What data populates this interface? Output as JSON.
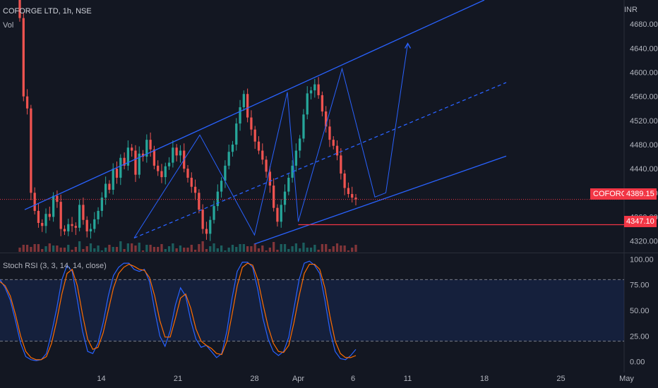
{
  "header": {
    "symbol": "COFORGE LTD, 1h, NSE",
    "volume_label": "Vol",
    "indicator_label": "Stoch RSI (3, 3, 14, 14, close)",
    "currency": "INR"
  },
  "price_tags": {
    "symbol_tag": "COFORGE",
    "last_price": "4389.15",
    "support_level": "4347.10"
  },
  "colors": {
    "background": "#131722",
    "up": "#26a69a",
    "down": "#ef5350",
    "channel": "#2962ff",
    "level": "#f23645",
    "k_line": "#2962ff",
    "d_line": "#ff6d00",
    "band_fill": "#2962ff"
  },
  "chart_data": [
    {
      "type": "candlestick",
      "title": "COFORGE LTD, 1h, NSE",
      "y_ticks": [
        "4320.00",
        "4360.00",
        "4400.00",
        "4440.00",
        "4480.00",
        "4520.00",
        "4560.00",
        "4600.00",
        "4640.00",
        "4680.00"
      ],
      "ylim": [
        4302,
        4720
      ],
      "x_ticks": [
        "14",
        "21",
        "28",
        "Apr",
        "6",
        "11",
        "18",
        "25",
        "May"
      ],
      "x_tick_dates": [
        "2022-03-14",
        "2022-03-21",
        "2022-03-28",
        "2022-04-01",
        "2022-04-06",
        "2022-04-11",
        "2022-04-18",
        "2022-04-25",
        "2022-05-01"
      ],
      "last_price": 4389.15,
      "support_level": 4347.1,
      "closes": [
        4690,
        4560,
        4540,
        4400,
        4370,
        4350,
        4345,
        4365,
        4360,
        4395,
        4385,
        4340,
        4336,
        4348,
        4345,
        4342,
        4380,
        4355,
        4336,
        4340,
        4356,
        4370,
        4392,
        4415,
        4405,
        4440,
        4425,
        4458,
        4445,
        4475,
        4470,
        4430,
        4465,
        4460,
        4488,
        4472,
        4445,
        4436,
        4426,
        4444,
        4450,
        4475,
        4462,
        4470,
        4440,
        4425,
        4410,
        4400,
        4372,
        4340,
        4332,
        4355,
        4378,
        4402,
        4420,
        4445,
        4468,
        4480,
        4515,
        4542,
        4564,
        4525,
        4505,
        4485,
        4470,
        4455,
        4435,
        4412,
        4375,
        4352,
        4380,
        4402,
        4425,
        4445,
        4470,
        4490,
        4530,
        4565,
        4570,
        4580,
        4562,
        4535,
        4510,
        4488,
        4478,
        4462,
        4432,
        4408,
        4398,
        4392,
        4389.15
      ],
      "annotations": {
        "channel_top": {
          "from": [
            "2022-03-07",
            4372
          ],
          "to": [
            "2022-04-18",
            4720
          ]
        },
        "channel_bottom": {
          "from": [
            "2022-03-28",
            4315
          ],
          "to": [
            "2022-04-20",
            4461
          ]
        },
        "channel_mid": {
          "from": [
            "2022-03-17",
            4325
          ],
          "to": [
            "2022-04-20",
            4583
          ]
        },
        "swing_path": [
          [
            "2022-03-17",
            4325
          ],
          [
            "2022-03-23",
            4496
          ],
          [
            "2022-03-28",
            4330
          ],
          [
            "2022-03-31",
            4567
          ],
          [
            "2022-04-01",
            4352
          ],
          [
            "2022-04-05",
            4606
          ],
          [
            "2022-04-08",
            4393
          ],
          [
            "2022-04-09",
            4400
          ],
          [
            "2022-04-11",
            4648
          ]
        ]
      }
    },
    {
      "type": "line",
      "title": "Stoch RSI (3, 3, 14, 14, close)",
      "y_ticks": [
        "0.00",
        "25.00",
        "50.00",
        "75.00",
        "100.00"
      ],
      "ylim": [
        -5,
        105
      ],
      "bands": [
        20,
        80
      ],
      "series": [
        {
          "values": [
            80,
            72,
            60,
            40,
            18,
            5,
            2,
            1,
            2,
            8,
            28,
            52,
            80,
            94,
            88,
            60,
            30,
            10,
            8,
            18,
            38,
            64,
            84,
            92,
            96,
            96,
            90,
            88,
            90,
            78,
            50,
            25,
            15,
            30,
            55,
            72,
            64,
            40,
            22,
            14,
            16,
            10,
            4,
            8,
            30,
            62,
            88,
            97,
            97,
            92,
            70,
            42,
            22,
            10,
            6,
            10,
            24,
            52,
            80,
            96,
            98,
            94,
            86,
            60,
            30,
            10,
            3,
            2,
            6,
            12
          ]
        },
        {
          "values": [
            78,
            74,
            64,
            46,
            25,
            10,
            4,
            2,
            2,
            5,
            18,
            40,
            66,
            86,
            90,
            74,
            46,
            22,
            12,
            14,
            28,
            50,
            72,
            86,
            92,
            95,
            93,
            90,
            89,
            82,
            64,
            40,
            24,
            24,
            42,
            62,
            66,
            52,
            32,
            20,
            16,
            13,
            8,
            7,
            20,
            46,
            74,
            92,
            96,
            94,
            80,
            56,
            34,
            18,
            10,
            9,
            16,
            38,
            64,
            86,
            95,
            95,
            90,
            72,
            44,
            20,
            8,
            4,
            4,
            6
          ]
        }
      ]
    }
  ]
}
